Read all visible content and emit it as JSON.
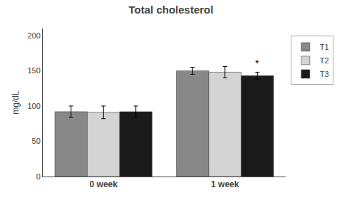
{
  "chart_data": {
    "type": "bar",
    "title": "Total cholesterol",
    "y_label": "mg/dL",
    "categories": [
      "0 week",
      "1 week"
    ],
    "series": [
      {
        "name": "T1",
        "color": "#888888",
        "values": [
          92,
          150
        ],
        "errors": [
          8,
          5
        ]
      },
      {
        "name": "T2",
        "color": "#d4d4d4",
        "values": [
          91,
          148
        ],
        "errors": [
          9,
          8
        ]
      },
      {
        "name": "T3",
        "color": "#1a1a1a",
        "values": [
          92,
          143
        ],
        "errors": [
          8,
          5
        ]
      }
    ],
    "annotations": [
      {
        "text": "*",
        "category": "1 week",
        "series": "T3"
      }
    ],
    "ylim": [
      0,
      210
    ],
    "yticks": [
      0,
      50,
      100,
      150,
      200
    ],
    "grid": false,
    "legend": "right"
  }
}
